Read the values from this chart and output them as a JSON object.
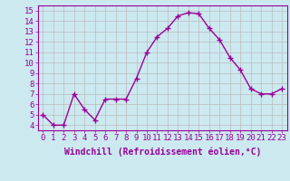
{
  "x": [
    0,
    1,
    2,
    3,
    4,
    5,
    6,
    7,
    8,
    9,
    10,
    11,
    12,
    13,
    14,
    15,
    16,
    17,
    18,
    19,
    20,
    21,
    22,
    23
  ],
  "y": [
    5.0,
    4.0,
    4.0,
    7.0,
    5.5,
    4.5,
    6.5,
    6.5,
    6.5,
    8.5,
    11.0,
    12.5,
    13.3,
    14.5,
    14.8,
    14.7,
    13.3,
    12.2,
    10.5,
    9.3,
    7.5,
    7.0,
    7.0,
    7.5
  ],
  "line_color": "#990099",
  "marker": "+",
  "marker_size": 4,
  "marker_linewidth": 1.0,
  "xlabel": "Windchill (Refroidissement éolien,°C)",
  "xlim": [
    -0.5,
    23.5
  ],
  "ylim": [
    3.5,
    15.5
  ],
  "yticks": [
    4,
    5,
    6,
    7,
    8,
    9,
    10,
    11,
    12,
    13,
    14,
    15
  ],
  "xticks": [
    0,
    1,
    2,
    3,
    4,
    5,
    6,
    7,
    8,
    9,
    10,
    11,
    12,
    13,
    14,
    15,
    16,
    17,
    18,
    19,
    20,
    21,
    22,
    23
  ],
  "background_color": "#cce9f0",
  "grid_color": "#bbbbbb",
  "xlabel_fontsize": 7,
  "tick_fontsize": 6.5,
  "line_width": 1.0,
  "label_color": "#990099"
}
